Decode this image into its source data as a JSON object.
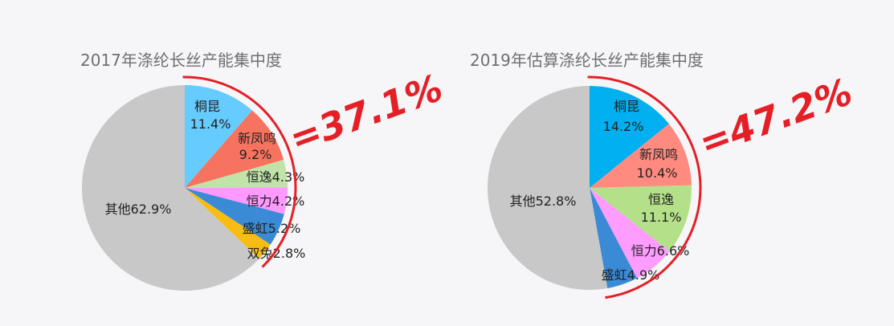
{
  "colors": {
    "background": "#f6f6f8",
    "accent": "#e41f26",
    "other_gray": "#c8c8c8"
  },
  "chart_data": [
    {
      "type": "pie",
      "title": "2017年涤纶长丝产能集中度",
      "slices": [
        {
          "name": "桐昆",
          "value": 11.4,
          "label": "桐昆",
          "value_label": "11.4%",
          "color": "#66ccff"
        },
        {
          "name": "新凤鸣",
          "value": 9.2,
          "label": "新凤鸣",
          "value_label": "9.2%",
          "color": "#f8735f"
        },
        {
          "name": "恒逸",
          "value": 4.3,
          "label": "恒逸4.3%",
          "value_label": "",
          "color": "#bfe3a8"
        },
        {
          "name": "恒力",
          "value": 4.2,
          "label": "恒力4.2%",
          "value_label": "",
          "color": "#ff99ff"
        },
        {
          "name": "盛虹",
          "value": 5.2,
          "label": "盛虹5.2%",
          "value_label": "",
          "color": "#3a8ad6"
        },
        {
          "name": "双兔",
          "value": 2.8,
          "label": "双兔2.8%",
          "value_label": "",
          "color": "#f7bd12"
        },
        {
          "name": "其他",
          "value": 62.9,
          "label": "其他62.9%",
          "value_label": "",
          "color": "#c8c8c8"
        }
      ],
      "concentration": "=37.1%"
    },
    {
      "type": "pie",
      "title": "2019年估算涤纶长丝产能集中度",
      "slices": [
        {
          "name": "桐昆",
          "value": 14.2,
          "label": "桐昆",
          "value_label": "14.2%",
          "color": "#00b0f0"
        },
        {
          "name": "新凤鸣",
          "value": 10.4,
          "label": "新凤鸣",
          "value_label": "10.4%",
          "color": "#ff8a80"
        },
        {
          "name": "恒逸",
          "value": 11.1,
          "label": "恒逸",
          "value_label": "11.1%",
          "color": "#b5e08a"
        },
        {
          "name": "恒力",
          "value": 6.6,
          "label": "恒力6.6%",
          "value_label": "",
          "color": "#ff9cff"
        },
        {
          "name": "盛虹",
          "value": 4.9,
          "label": "盛虹4.9%",
          "value_label": "",
          "color": "#3a8ad6"
        },
        {
          "name": "其他",
          "value": 52.8,
          "label": "其他52.8%",
          "value_label": "",
          "color": "#c8c8c8"
        }
      ],
      "concentration": "=47.2%"
    }
  ]
}
